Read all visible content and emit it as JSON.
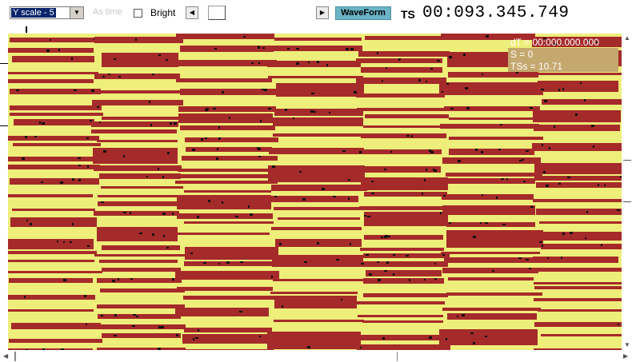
{
  "toolbar": {
    "y_scale_value": "Y scale - 5",
    "as_time_label": "As time",
    "bright_label": "Bright",
    "bright_checked": false,
    "waveform_label": "WaveForm",
    "ts_label": "TS",
    "ts_value": "00:093.345.749"
  },
  "overlay": {
    "dt": "dT = 00:000.000.000",
    "s": "S = 0",
    "tss": "TSs = 10.71"
  },
  "colors": {
    "background": "#eeee7a",
    "band": "#a52a2a",
    "speck": "#111111",
    "overlay_bg": "#c4a86e"
  },
  "icons": {
    "scroll_left": "left-arrow-icon",
    "scroll_right": "right-arrow-icon",
    "dropdown": "chevron-down-icon"
  }
}
